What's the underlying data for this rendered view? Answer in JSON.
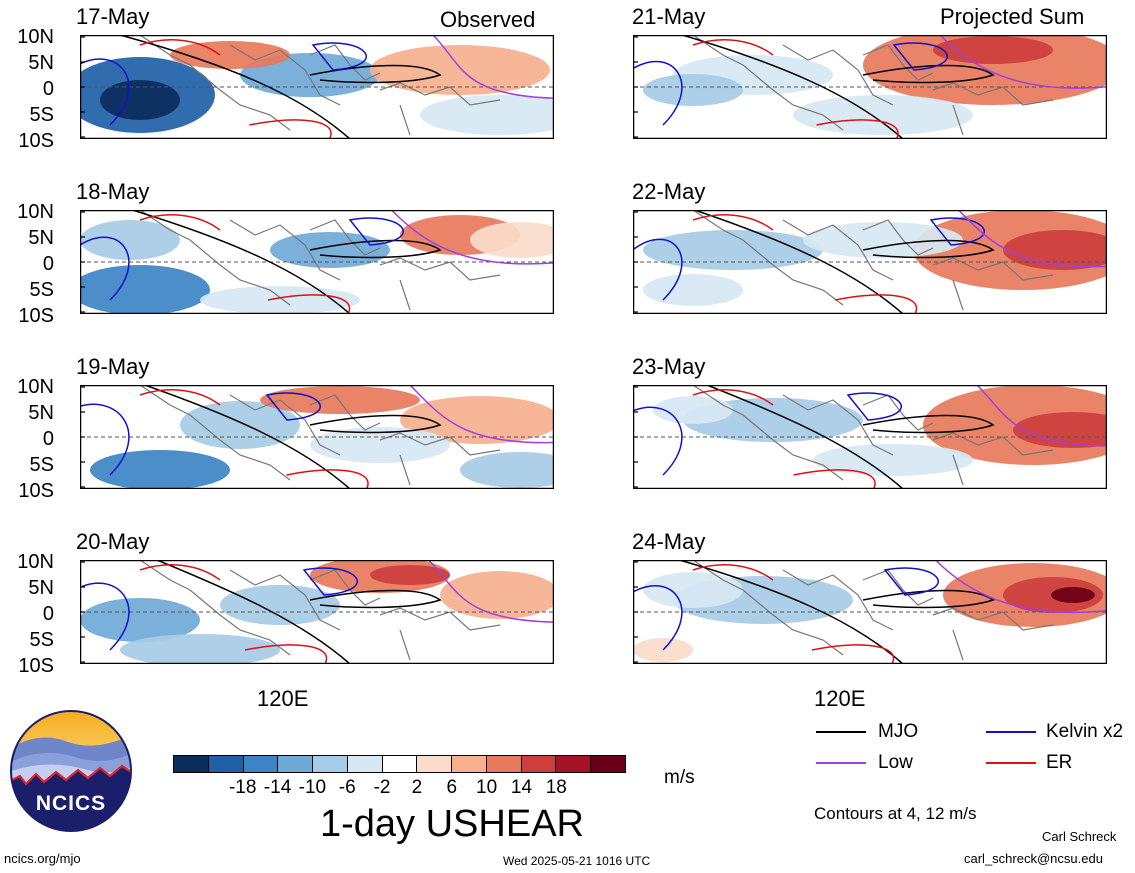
{
  "titles": {
    "observed": "Observed",
    "projected": "Projected Sum"
  },
  "dates_observed": [
    "17-May",
    "18-May",
    "19-May",
    "20-May"
  ],
  "dates_projected": [
    "21-May",
    "22-May",
    "23-May",
    "24-May"
  ],
  "lat_labels": [
    "10N",
    "5N",
    "0",
    "5S",
    "10S"
  ],
  "lon_label": "120E",
  "colorbar": {
    "ticks": [
      "-18",
      "-14",
      "-10",
      "-6",
      "-2",
      "2",
      "6",
      "10",
      "14",
      "18"
    ],
    "colors": [
      "#0b2d5c",
      "#1f5fa8",
      "#3d84c4",
      "#6fa9d6",
      "#a6cbe6",
      "#d7e8f3",
      "#ffffff",
      "#fbdcca",
      "#f6b08e",
      "#e77a5c",
      "#cc3f3d",
      "#a41326",
      "#6a0017"
    ],
    "units": "m/s",
    "title": "1-day USHEAR"
  },
  "legend": {
    "items": [
      {
        "label": "MJO",
        "color": "#000000"
      },
      {
        "label": "Kelvin x2",
        "color": "#1111cc"
      },
      {
        "label": "Low",
        "color": "#a040e0"
      },
      {
        "label": "ER",
        "color": "#dd1111"
      }
    ],
    "contours_note": "Contours at 4, 12 m/s"
  },
  "logo_text": "NCICS",
  "footer": {
    "left": "ncics.org/mjo",
    "center": "Wed 2025-05-21 1016 UTC",
    "author": "Carl Schreck",
    "email": "carl_schreck@ncsu.edu"
  }
}
